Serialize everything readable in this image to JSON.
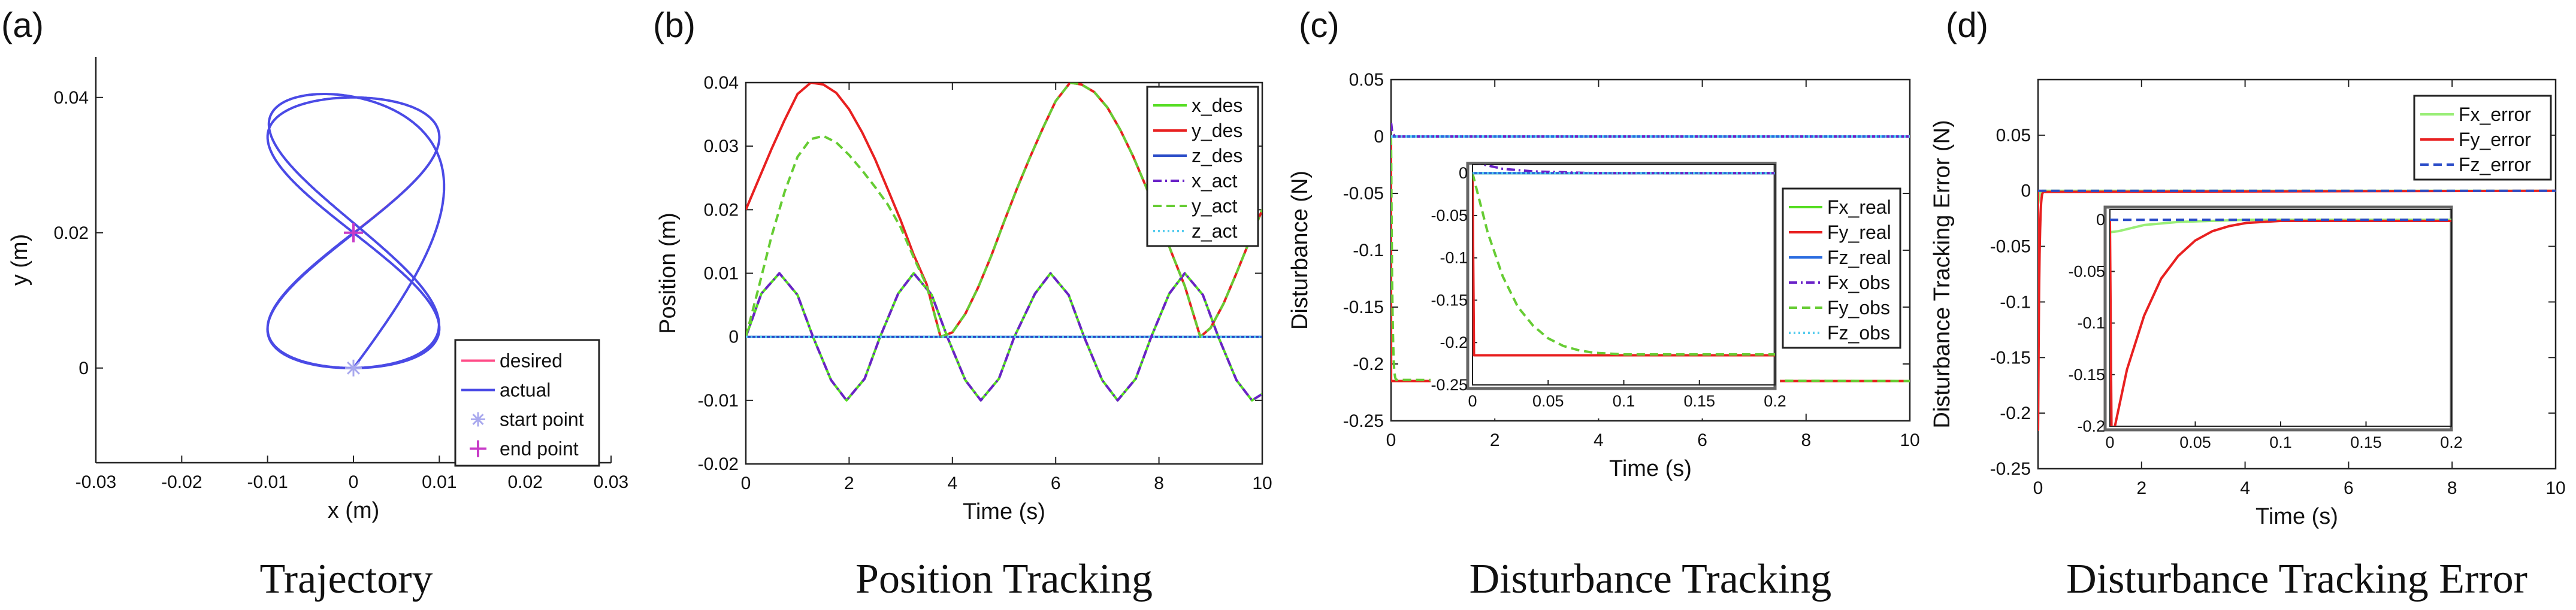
{
  "chart_data": [
    {
      "panel": "(a)",
      "caption": "Trajectory",
      "type": "line",
      "xlabel": "x (m)",
      "ylabel": "y (m)",
      "xlim": [
        -0.03,
        0.03
      ],
      "ylim": [
        -0.014,
        0.046
      ],
      "xticks": [
        -0.03,
        -0.02,
        -0.01,
        0,
        0.01,
        0.02,
        0.03
      ],
      "xtick_labels": [
        "-0.03",
        "-0.02",
        "-0.01",
        "0",
        "0.01",
        "0.02",
        "0.03"
      ],
      "yticks": [
        0,
        0.02,
        0.04
      ],
      "ytick_labels": [
        "0",
        "0.02",
        "0.04"
      ],
      "axes_box": false,
      "legend": {
        "position": "bottom-right",
        "entries": [
          {
            "label": "desired",
            "color": "#ff4d88",
            "style": "solid"
          },
          {
            "label": "actual",
            "color": "#4a4ae6",
            "style": "solid"
          },
          {
            "label": "start point",
            "color": "#a9a9ee",
            "marker": "asterisk"
          },
          {
            "label": "end point",
            "color": "#c83cc8",
            "marker": "plus"
          }
        ]
      },
      "series": [
        {
          "name": "desired",
          "kind": "figure8",
          "x_amp": 0.01,
          "y_amp": 0.02,
          "y_center": 0.02,
          "color": "#ff4d88"
        },
        {
          "name": "actual",
          "kind": "figure8-converging",
          "x_amp": 0.01,
          "y_amp": 0.02,
          "y_center": 0.02,
          "x_start": 0,
          "y_start": 0,
          "color": "#4a4ae6"
        }
      ],
      "points": [
        {
          "name": "start point",
          "x": 0,
          "y": 0,
          "color": "#a9a9ee"
        },
        {
          "name": "end point",
          "x": 0,
          "y": 0.02,
          "color": "#c83cc8"
        }
      ]
    },
    {
      "panel": "(b)",
      "caption": "Position Tracking",
      "type": "line",
      "xlabel": "Time (s)",
      "ylabel": "Position (m)",
      "xlim": [
        0,
        10
      ],
      "ylim": [
        -0.02,
        0.04
      ],
      "xticks": [
        0,
        2,
        4,
        6,
        8,
        10
      ],
      "xtick_labels": [
        "0",
        "2",
        "4",
        "6",
        "8",
        "10"
      ],
      "yticks": [
        -0.02,
        -0.01,
        0,
        0.01,
        0.02,
        0.03,
        0.04
      ],
      "ytick_labels": [
        "-0.02",
        "-0.01",
        "0",
        "0.01",
        "0.02",
        "0.03",
        "0.04"
      ],
      "legend": {
        "position": "top-right",
        "entries": [
          {
            "label": "x_des",
            "color": "#55dd22",
            "style": "solid"
          },
          {
            "label": "y_des",
            "color": "#e82020",
            "style": "solid"
          },
          {
            "label": "z_des",
            "color": "#2a4cc8",
            "style": "solid"
          },
          {
            "label": "x_act",
            "color": "#6a22c8",
            "style": "dashdot"
          },
          {
            "label": "y_act",
            "color": "#66cc33",
            "style": "dashed"
          },
          {
            "label": "z_act",
            "color": "#55ccee",
            "style": "dotted"
          }
        ]
      },
      "series": [
        {
          "name": "x_des",
          "t": [
            0,
            0.3,
            0.65,
            1.0,
            1.3,
            1.65,
            1.95,
            2.3,
            2.6,
            2.95,
            3.25,
            3.6,
            3.9,
            4.25,
            4.55,
            4.9,
            5.2,
            5.6,
            5.9,
            6.25,
            6.55,
            6.9,
            7.2,
            7.55,
            7.85,
            8.2,
            8.5,
            8.85,
            9.15,
            9.5,
            9.8,
            10
          ],
          "y": [
            0,
            0.0068,
            0.01,
            0.0066,
            0,
            -0.0068,
            -0.01,
            -0.0066,
            0,
            0.0068,
            0.01,
            0.0066,
            0,
            -0.0068,
            -0.01,
            -0.0066,
            0,
            0.0068,
            0.01,
            0.0066,
            0,
            -0.0068,
            -0.01,
            -0.0066,
            0,
            0.0068,
            0.01,
            0.0066,
            0,
            -0.0068,
            -0.01,
            -0.009
          ],
          "color": "#55dd22",
          "style": "solid"
        },
        {
          "name": "y_des",
          "t": [
            0,
            0.25,
            0.5,
            0.75,
            1.0,
            1.26,
            1.5,
            1.75,
            2.0,
            2.25,
            2.5,
            2.75,
            3.0,
            3.25,
            3.5,
            3.77,
            4.0,
            4.25,
            4.5,
            4.75,
            5.0,
            5.25,
            5.5,
            5.75,
            6.0,
            6.28,
            6.5,
            6.75,
            7.0,
            7.25,
            7.5,
            7.75,
            8.0,
            8.25,
            8.5,
            8.8,
            9.0,
            9.25,
            9.5,
            9.75,
            10
          ],
          "y": [
            0.02,
            0.0248,
            0.0296,
            0.0341,
            0.0382,
            0.04,
            0.0397,
            0.0384,
            0.0358,
            0.0322,
            0.028,
            0.0232,
            0.0183,
            0.0129,
            0.0083,
            0.0,
            0.0007,
            0.0036,
            0.0078,
            0.0127,
            0.0181,
            0.0233,
            0.0282,
            0.0328,
            0.0371,
            0.04,
            0.0397,
            0.0385,
            0.0361,
            0.0326,
            0.0284,
            0.0236,
            0.0185,
            0.0131,
            0.008,
            0.0,
            0.0014,
            0.0052,
            0.01,
            0.015,
            0.02
          ],
          "color": "#e82020",
          "style": "solid"
        },
        {
          "name": "z_des",
          "t": [
            0,
            10
          ],
          "y": [
            0,
            0
          ],
          "color": "#2a4cc8",
          "style": "solid"
        },
        {
          "name": "x_act",
          "t": [
            0,
            0.3,
            0.65,
            1.0,
            1.3,
            1.65,
            1.95,
            2.3,
            2.6,
            2.95,
            3.25,
            3.6,
            3.9,
            4.25,
            4.55,
            4.9,
            5.2,
            5.6,
            5.9,
            6.25,
            6.55,
            6.9,
            7.2,
            7.55,
            7.85,
            8.2,
            8.5,
            8.85,
            9.15,
            9.5,
            9.8,
            10
          ],
          "y": [
            0,
            0.0068,
            0.01,
            0.0066,
            0,
            -0.0068,
            -0.01,
            -0.0066,
            0,
            0.0068,
            0.01,
            0.0066,
            0,
            -0.0068,
            -0.01,
            -0.0066,
            0,
            0.0068,
            0.01,
            0.0066,
            0,
            -0.0068,
            -0.01,
            -0.0066,
            0,
            0.0068,
            0.01,
            0.0066,
            0,
            -0.0068,
            -0.01,
            -0.009
          ],
          "color": "#6a22c8",
          "style": "dashdot"
        },
        {
          "name": "y_act",
          "t": [
            0,
            0.25,
            0.5,
            0.75,
            1.0,
            1.25,
            1.5,
            1.75,
            2.0,
            2.25,
            2.5,
            2.75,
            3.0,
            3.25,
            3.5,
            3.77,
            4.0,
            4.25,
            4.5,
            4.75,
            5.0,
            5.25,
            5.5,
            5.75,
            6.0,
            6.28,
            6.5,
            6.75,
            7.0,
            7.25,
            7.5,
            7.75,
            8.0,
            8.25,
            8.5,
            8.8,
            9.0,
            9.25,
            9.5,
            9.75,
            10
          ],
          "y": [
            0,
            0.0078,
            0.0159,
            0.0228,
            0.0283,
            0.0311,
            0.0316,
            0.0306,
            0.0286,
            0.0262,
            0.0236,
            0.0208,
            0.0172,
            0.0125,
            0.0081,
            0.0,
            0.0007,
            0.0036,
            0.0078,
            0.0127,
            0.0181,
            0.0233,
            0.0282,
            0.0328,
            0.0371,
            0.04,
            0.0397,
            0.0385,
            0.0361,
            0.0326,
            0.0284,
            0.0236,
            0.0185,
            0.0131,
            0.008,
            0.0,
            0.0014,
            0.0052,
            0.01,
            0.015,
            0.02
          ],
          "color": "#66cc33",
          "style": "dashed"
        },
        {
          "name": "z_act",
          "t": [
            0,
            10
          ],
          "y": [
            0,
            0
          ],
          "color": "#55ccee",
          "style": "dotted"
        }
      ]
    },
    {
      "panel": "(c)",
      "caption": "Disturbance Tracking",
      "type": "line",
      "xlabel": "Time (s)",
      "ylabel": "Disturbance (N)",
      "xlim": [
        0,
        10
      ],
      "ylim": [
        -0.25,
        0.05
      ],
      "xticks": [
        0,
        2,
        4,
        6,
        8,
        10
      ],
      "xtick_labels": [
        "0",
        "2",
        "4",
        "6",
        "8",
        "10"
      ],
      "yticks": [
        -0.25,
        -0.2,
        -0.15,
        -0.1,
        -0.05,
        0,
        0.05
      ],
      "ytick_labels": [
        "-0.25",
        "-0.2",
        "-0.15",
        "-0.1",
        "-0.05",
        "0",
        "0.05"
      ],
      "legend": {
        "position": "right",
        "entries": [
          {
            "label": "Fx_real",
            "color": "#55dd22",
            "style": "solid"
          },
          {
            "label": "Fy_real",
            "color": "#e82020",
            "style": "solid"
          },
          {
            "label": "Fz_real",
            "color": "#2a6ce0",
            "style": "solid"
          },
          {
            "label": "Fx_obs",
            "color": "#6a22c8",
            "style": "dashdot"
          },
          {
            "label": "Fy_obs",
            "color": "#66cc33",
            "style": "dashed"
          },
          {
            "label": "Fz_obs",
            "color": "#55ccee",
            "style": "dotted"
          }
        ]
      },
      "series": [
        {
          "name": "Fx_real",
          "t": [
            0,
            10
          ],
          "y": [
            0,
            0
          ],
          "color": "#55dd22",
          "style": "solid"
        },
        {
          "name": "Fy_real",
          "t": [
            0,
            0.001,
            10
          ],
          "y": [
            0,
            -0.215,
            -0.215
          ],
          "color": "#e82020",
          "style": "solid"
        },
        {
          "name": "Fz_real",
          "t": [
            0,
            10
          ],
          "y": [
            0,
            0
          ],
          "color": "#2a6ce0",
          "style": "solid"
        },
        {
          "name": "Fx_obs",
          "t": [
            0,
            0.005,
            0.02,
            0.04,
            0.08,
            10
          ],
          "y": [
            0.012,
            0.011,
            0.005,
            0.002,
            0.0,
            0.0
          ],
          "color": "#6a22c8",
          "style": "dashdot"
        },
        {
          "name": "Fy_obs",
          "t": [
            0,
            0.01,
            0.02,
            0.03,
            0.04,
            0.05,
            0.06,
            0.07,
            0.08,
            0.1,
            10
          ],
          "y": [
            0,
            -0.07,
            -0.122,
            -0.158,
            -0.18,
            -0.195,
            -0.204,
            -0.209,
            -0.212,
            -0.214,
            -0.215
          ],
          "color": "#66cc33",
          "style": "dashed"
        },
        {
          "name": "Fz_obs",
          "t": [
            0,
            10
          ],
          "y": [
            0,
            0
          ],
          "color": "#55ccee",
          "style": "dotted"
        }
      ],
      "inset": {
        "xlim": [
          0,
          0.2
        ],
        "ylim": [
          -0.25,
          0.01
        ],
        "xticks": [
          0,
          0.05,
          0.1,
          0.15,
          0.2
        ],
        "xtick_labels": [
          "0",
          "0.05",
          "0.1",
          "0.15",
          "0.2"
        ],
        "yticks": [
          -0.25,
          -0.2,
          -0.15,
          -0.1,
          -0.05,
          0
        ],
        "ytick_labels": [
          "-0.25",
          "-0.2",
          "-0.15",
          "-0.1",
          "-0.05",
          "0"
        ]
      }
    },
    {
      "panel": "(d)",
      "caption": "Disturbance Tracking Error",
      "type": "line",
      "xlabel": "Time (s)",
      "ylabel": "Disturbance Tracking Error (N)",
      "xlim": [
        0,
        10
      ],
      "ylim": [
        -0.25,
        0.1
      ],
      "xticks": [
        0,
        2,
        4,
        6,
        8,
        10
      ],
      "xtick_labels": [
        "0",
        "2",
        "4",
        "6",
        "8",
        "10"
      ],
      "yticks": [
        -0.25,
        -0.2,
        -0.15,
        -0.1,
        -0.05,
        0,
        0.05
      ],
      "ytick_labels": [
        "-0.25",
        "-0.2",
        "-0.15",
        "-0.1",
        "-0.05",
        "0",
        "0.05"
      ],
      "legend": {
        "position": "top-right",
        "entries": [
          {
            "label": "Fx_error",
            "color": "#99ee77",
            "style": "solid"
          },
          {
            "label": "Fy_error",
            "color": "#e82020",
            "style": "solid"
          },
          {
            "label": "Fz_error",
            "color": "#2a4cc8",
            "style": "dashed"
          }
        ]
      },
      "series": [
        {
          "name": "Fx_error",
          "t": [
            0,
            0.005,
            0.02,
            0.04,
            0.08,
            10
          ],
          "y": [
            -0.012,
            -0.011,
            -0.005,
            -0.002,
            0.0,
            0.0
          ],
          "color": "#99ee77",
          "style": "solid"
        },
        {
          "name": "Fy_error",
          "t": [
            0,
            0.001,
            0.01,
            0.02,
            0.03,
            0.04,
            0.05,
            0.06,
            0.07,
            0.08,
            0.1,
            10
          ],
          "y": [
            0,
            -0.215,
            -0.145,
            -0.093,
            -0.057,
            -0.035,
            -0.02,
            -0.011,
            -0.006,
            -0.003,
            -0.001,
            0.0
          ],
          "color": "#e82020",
          "style": "solid"
        },
        {
          "name": "Fz_error",
          "t": [
            0,
            10
          ],
          "y": [
            0,
            0
          ],
          "color": "#2a4cc8",
          "style": "dashed"
        }
      ],
      "inset": {
        "xlim": [
          0,
          0.2
        ],
        "ylim": [
          -0.2,
          0.01
        ],
        "xticks": [
          0,
          0.05,
          0.1,
          0.15,
          0.2
        ],
        "xtick_labels": [
          "0",
          "0.05",
          "0.1",
          "0.15",
          "0.2"
        ],
        "yticks": [
          -0.2,
          -0.15,
          -0.1,
          -0.05,
          0
        ],
        "ytick_labels": [
          "-0.2",
          "-0.15",
          "-0.1",
          "-0.05",
          "0"
        ]
      }
    }
  ]
}
